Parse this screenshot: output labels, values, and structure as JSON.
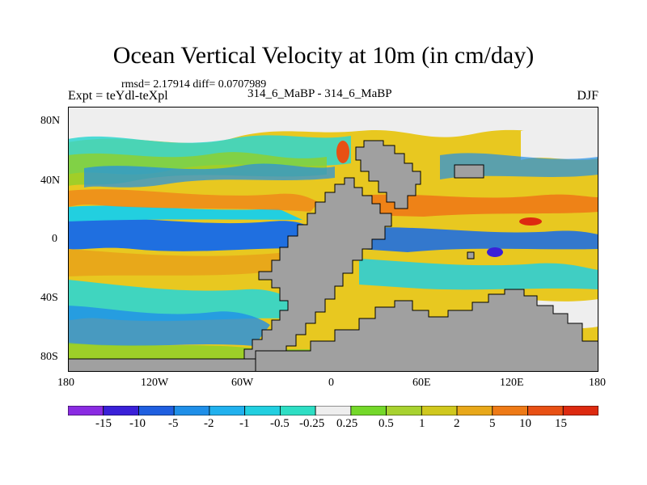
{
  "title": "Ocean Vertical Velocity at 10m (in cm/day)",
  "stats_line": "rmsd= 2.17914  diff= 0.0707989",
  "left_subtitle": "Expt = teYdl-teXpl",
  "center_subtitle": "314_6_MaBP - 314_6_MaBP",
  "right_subtitle": "DJF",
  "lat_ticks": [
    "80N",
    "40N",
    "0",
    "40S",
    "80S"
  ],
  "lon_ticks": [
    "180",
    "120W",
    "60W",
    "0",
    "60E",
    "120E",
    "180"
  ],
  "colorbar": {
    "labels": [
      "-15",
      "-10",
      "-5",
      "-2",
      "-1",
      "-0.5",
      "-0.25",
      "0.25",
      "0.5",
      "1",
      "2",
      "5",
      "10",
      "15"
    ],
    "colors": [
      "#8a2be2",
      "#3a20d8",
      "#1f5fe0",
      "#1f8fe8",
      "#21b1ee",
      "#22cfe0",
      "#2edec4",
      "#eeeeee",
      "#74d82a",
      "#a8d230",
      "#d0c81e",
      "#e8a81a",
      "#ee7a16",
      "#e85014",
      "#dd2a10"
    ]
  },
  "colors": {
    "land": "#a0a0a0",
    "frame": "#000000"
  }
}
